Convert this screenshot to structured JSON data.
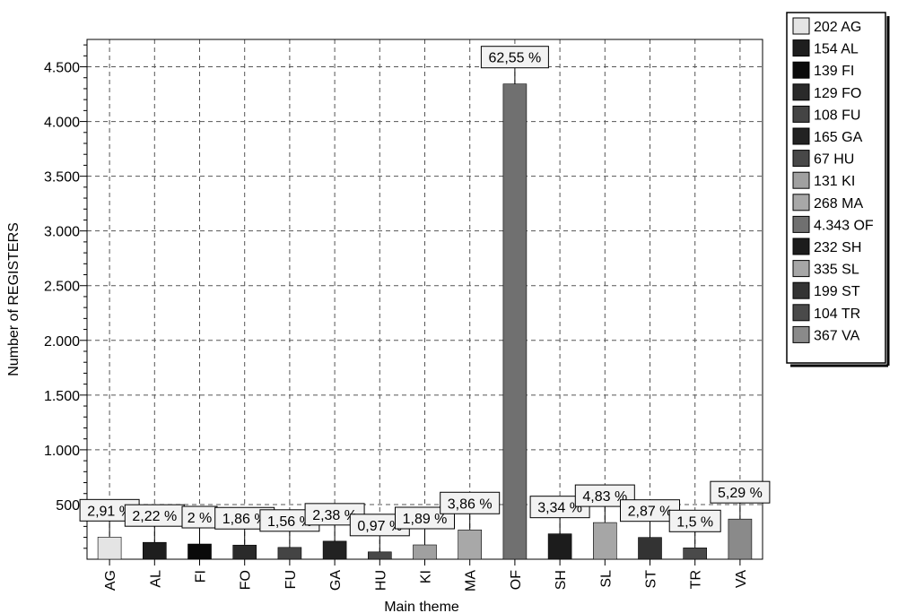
{
  "chart_data": {
    "type": "bar",
    "title": "",
    "xlabel": "Main theme",
    "ylabel": "Number of REGISTERS",
    "ylim": [
      0,
      4750
    ],
    "y_ticks": [
      {
        "value": 500,
        "label": "500"
      },
      {
        "value": 1000,
        "label": "1.000"
      },
      {
        "value": 1500,
        "label": "1.500"
      },
      {
        "value": 2000,
        "label": "2.000"
      },
      {
        "value": 2500,
        "label": "2.500"
      },
      {
        "value": 3000,
        "label": "3.000"
      },
      {
        "value": 3500,
        "label": "3.500"
      },
      {
        "value": 4000,
        "label": "4.000"
      },
      {
        "value": 4500,
        "label": "4.500"
      }
    ],
    "grid": true,
    "legend_placement": "right",
    "categories": [
      "AG",
      "AL",
      "FI",
      "FO",
      "FU",
      "GA",
      "HU",
      "KI",
      "MA",
      "OF",
      "SH",
      "SL",
      "ST",
      "TR",
      "VA"
    ],
    "values": [
      202,
      154,
      139,
      129,
      108,
      165,
      67,
      131,
      268,
      4343,
      232,
      335,
      199,
      104,
      367
    ],
    "data_labels": [
      "2,91 %",
      "2,22 %",
      "2 %",
      "1,86 %",
      "1,56 %",
      "2,38 %",
      "0,97 %",
      "1,89 %",
      "3,86 %",
      "62,55 %",
      "3,34 %",
      "4,83 %",
      "2,87 %",
      "1,5 %",
      "5,29 %"
    ],
    "legend_entries": [
      "202 AG",
      "154 AL",
      "139 FI",
      "129 FO",
      "108 FU",
      "165 GA",
      "67 HU",
      "131 KI",
      "268 MA",
      "4.343 OF",
      "232 SH",
      "335 SL",
      "199 ST",
      "104 TR",
      "367 VA"
    ],
    "colors": [
      "#e4e4e4",
      "#1e1e1e",
      "#0a0a0a",
      "#2a2a2a",
      "#444444",
      "#222222",
      "#484848",
      "#a0a0a0",
      "#a8a8a8",
      "#707070",
      "#1c1c1c",
      "#a6a6a6",
      "#333333",
      "#4a4a4a",
      "#8a8a8a"
    ]
  }
}
